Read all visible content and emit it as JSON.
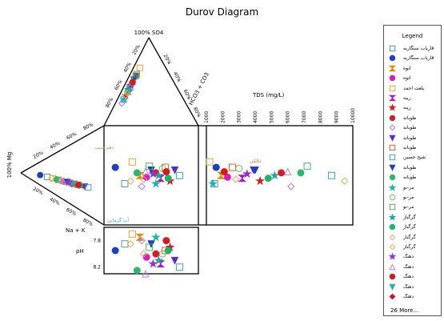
{
  "title": "Durov Diagram",
  "chart_data": {
    "type": "scatter",
    "diagram": "durov",
    "labels": {
      "so4": "100% SO4",
      "hco3": "HCO3 + CO3",
      "mg": "100% Mg",
      "na": "Na + K",
      "tds": "TDS (mg/L)",
      "ph": "pH"
    },
    "anion_ticks": [
      "20%",
      "40%",
      "60%",
      "80%"
    ],
    "hco3_ticks": [
      "20%",
      "40%",
      "60%",
      "80%"
    ],
    "cation_ticks": [
      "20%",
      "40%",
      "60%",
      "80%"
    ],
    "tds_ticks": [
      "1000",
      "2000",
      "3000",
      "4000",
      "5000",
      "6000",
      "7000",
      "8000",
      "9000",
      "10000"
    ],
    "tds_range": [
      1000,
      10000
    ],
    "ph_ticks": [
      "7.8",
      "8.2"
    ],
    "ph_range": [
      7.6,
      8.3
    ],
    "annotations": [
      "دهم شیب",
      "آب گرمابی",
      "دالکی"
    ],
    "samples": [
      {
        "series": 0,
        "ca": 22,
        "so4": 30,
        "tds": 1500,
        "ph": 7.85
      },
      {
        "series": 1,
        "ca": 12,
        "so4": 60,
        "tds": 1600,
        "ph": 7.95
      },
      {
        "series": 2,
        "ca": 38,
        "so4": 45,
        "tds": 1900,
        "ph": 7.75
      },
      {
        "series": 3,
        "ca": 45,
        "so4": 42,
        "tds": 2300,
        "ph": 8.05
      },
      {
        "series": 4,
        "ca": 30,
        "so4": 70,
        "tds": 1200,
        "ph": 7.7
      },
      {
        "series": 5,
        "ca": 60,
        "so4": 40,
        "tds": 3200,
        "ph": 8.15
      },
      {
        "series": 6,
        "ca": 70,
        "so4": 35,
        "tds": 4300,
        "ph": 7.9
      },
      {
        "series": 7,
        "ca": 55,
        "so4": 50,
        "tds": 5600,
        "ph": 8.0
      },
      {
        "series": 8,
        "ca": 40,
        "so4": 25,
        "tds": 6200,
        "ph": 7.8
      },
      {
        "series": 9,
        "ca": 75,
        "so4": 55,
        "tds": 3900,
        "ph": 8.1
      },
      {
        "series": 10,
        "ca": 65,
        "so4": 60,
        "tds": 2600,
        "ph": 7.95
      },
      {
        "series": 11,
        "ca": 80,
        "so4": 45,
        "tds": 8700,
        "ph": 8.2
      },
      {
        "series": 12,
        "ca": 50,
        "so4": 55,
        "tds": 4000,
        "ph": 7.85
      },
      {
        "series": 13,
        "ca": 35,
        "so4": 50,
        "tds": 6800,
        "ph": 8.25
      },
      {
        "series": 14,
        "ca": 55,
        "so4": 30,
        "tds": 1400,
        "ph": 7.75
      },
      {
        "series": 15,
        "ca": 62,
        "so4": 58,
        "tds": 3000,
        "ph": 8.0
      },
      {
        "series": 16,
        "ca": 48,
        "so4": 62,
        "tds": 7200,
        "ph": 7.9
      },
      {
        "series": 17,
        "ca": 58,
        "so4": 45,
        "tds": 5200,
        "ph": 8.1
      },
      {
        "series": 18,
        "ca": 68,
        "so4": 40,
        "tds": 4800,
        "ph": 7.95
      },
      {
        "series": 19,
        "ca": 42,
        "so4": 38,
        "tds": 2800,
        "ph": 8.0
      },
      {
        "series": 20,
        "ca": 28,
        "so4": 35,
        "tds": 9500,
        "ph": 7.85
      },
      {
        "series": 21,
        "ca": 52,
        "so4": 48,
        "tds": 3500,
        "ph": 8.15
      },
      {
        "series": 22,
        "ca": 44,
        "so4": 52,
        "tds": 6000,
        "ph": 8.3
      },
      {
        "series": 23,
        "ca": 66,
        "so4": 52,
        "tds": 2100,
        "ph": 7.8
      }
    ]
  },
  "legend": {
    "title": "Legend",
    "more": "26 More...",
    "items": [
      {
        "label": "قاریاب سنگاریه",
        "shape": "square-open",
        "color": "#4a90d9"
      },
      {
        "label": "قاریاب سنگاریه",
        "shape": "circle",
        "color": "#1f3fbf"
      },
      {
        "label": "انوه",
        "shape": "hourglass",
        "color": "#e08a00"
      },
      {
        "label": "انوه",
        "shape": "circle",
        "color": "#d81fb5"
      },
      {
        "label": "بلعت احمد",
        "shape": "square-open",
        "color": "#f2a03a"
      },
      {
        "label": "زیبه",
        "shape": "hourglass",
        "color": "#a020c8"
      },
      {
        "label": "زیبه",
        "shape": "star",
        "color": "#d51a1a"
      },
      {
        "label": "طوبانه",
        "shape": "circle",
        "color": "#d21d2d"
      },
      {
        "label": "طوبانه",
        "shape": "diamond-open",
        "color": "#b86fe0"
      },
      {
        "label": "طوبانه",
        "shape": "triangle-down",
        "color": "#5a2fbf"
      },
      {
        "label": "طوبانه",
        "shape": "square-open",
        "color": "#d86030"
      },
      {
        "label": "شیخ حسین",
        "shape": "square-open",
        "color": "#3aa0c8"
      },
      {
        "label": "طوبانه",
        "shape": "triangle-down",
        "color": "#1f3fbf"
      },
      {
        "label": "طوبانه",
        "shape": "circle",
        "color": "#2cb86a"
      },
      {
        "label": "مر-نو",
        "shape": "star",
        "color": "#1fb5a8"
      },
      {
        "label": "مر-نو",
        "shape": "circle-open",
        "color": "#68c060"
      },
      {
        "label": "مر-نو",
        "shape": "square-open",
        "color": "#48b848"
      },
      {
        "label": "گرگناز",
        "shape": "star",
        "color": "#2ca0a0"
      },
      {
        "label": "گرگناز",
        "shape": "circle",
        "color": "#20b070"
      },
      {
        "label": "گرگناز",
        "shape": "diamond-open",
        "color": "#f0a080"
      },
      {
        "label": "گرگناز",
        "shape": "diamond-open",
        "color": "#e0b050"
      },
      {
        "label": "دهنگ",
        "shape": "star",
        "color": "#9a30c8"
      },
      {
        "label": "دهنگ",
        "shape": "triangle-open",
        "color": "#c080e0"
      },
      {
        "label": "دهنگ",
        "shape": "circle",
        "color": "#d01d1d"
      },
      {
        "label": "دهنگ",
        "shape": "triangle-down",
        "color": "#30b0a0"
      },
      {
        "label": "دهنگ",
        "shape": "diamond",
        "color": "#c0182a"
      }
    ]
  }
}
